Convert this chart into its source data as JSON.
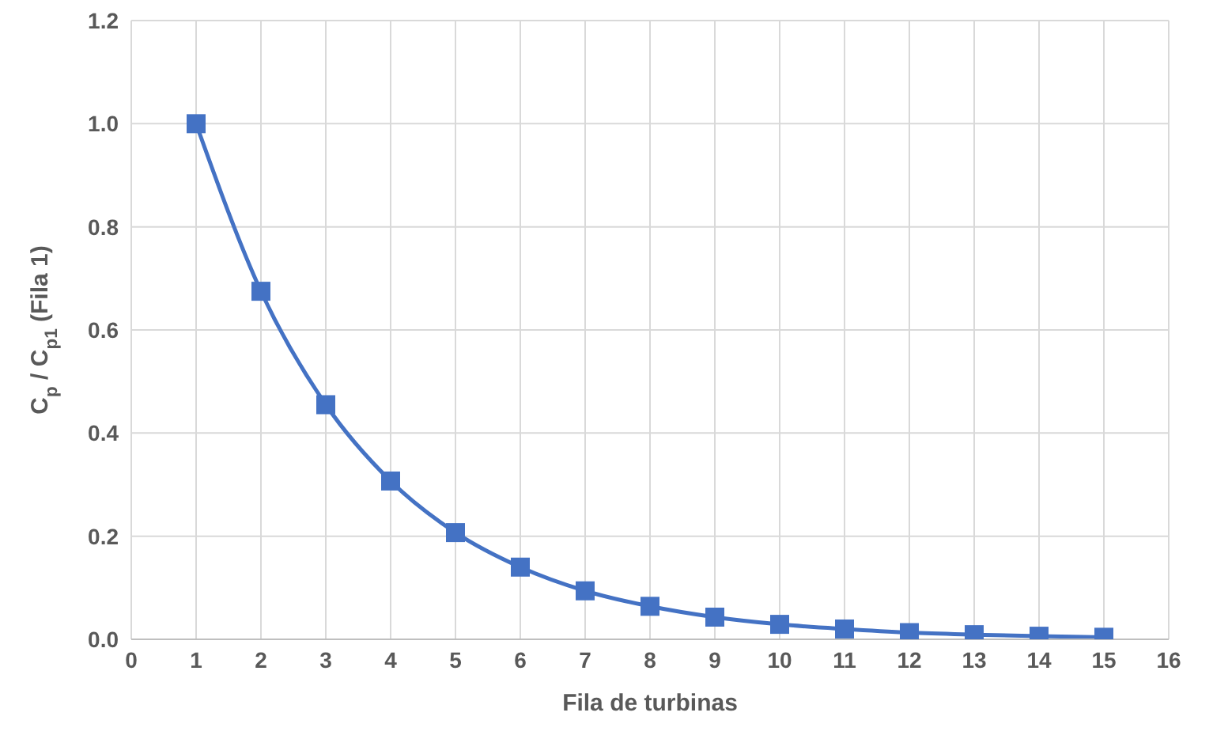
{
  "chart_data": {
    "type": "line",
    "xlabel": "Fila de turbinas",
    "ylabel": "C$_{p}$ / C$_{p1}$ (Fila 1)",
    "x": [
      1,
      2,
      3,
      4,
      5,
      6,
      7,
      8,
      9,
      10,
      11,
      12,
      13,
      14,
      15
    ],
    "series": [
      {
        "color": "#4472c4",
        "values": [
          1.0,
          0.675,
          0.455,
          0.307,
          0.207,
          0.14,
          0.094,
          0.064,
          0.043,
          0.029,
          0.02,
          0.013,
          0.009,
          0.006,
          0.004
        ]
      }
    ],
    "xlim": [
      0,
      16
    ],
    "xticks": [
      0,
      1,
      2,
      3,
      4,
      5,
      6,
      7,
      8,
      9,
      10,
      11,
      12,
      13,
      14,
      15,
      16
    ],
    "ylim": [
      0,
      1.2
    ],
    "yticks": [
      {
        "value": 0,
        "label": "0.0"
      },
      {
        "value": 0.2,
        "label": "0.2"
      },
      {
        "value": 0.4,
        "label": "0.4"
      },
      {
        "value": 0.6,
        "label": "0.6"
      },
      {
        "value": 0.8,
        "label": "0.8"
      },
      {
        "value": 1.0,
        "label": "1.0"
      },
      {
        "value": 1.2,
        "label": "1.2"
      }
    ],
    "grid": true,
    "marker": "square",
    "line_style": "solid"
  }
}
